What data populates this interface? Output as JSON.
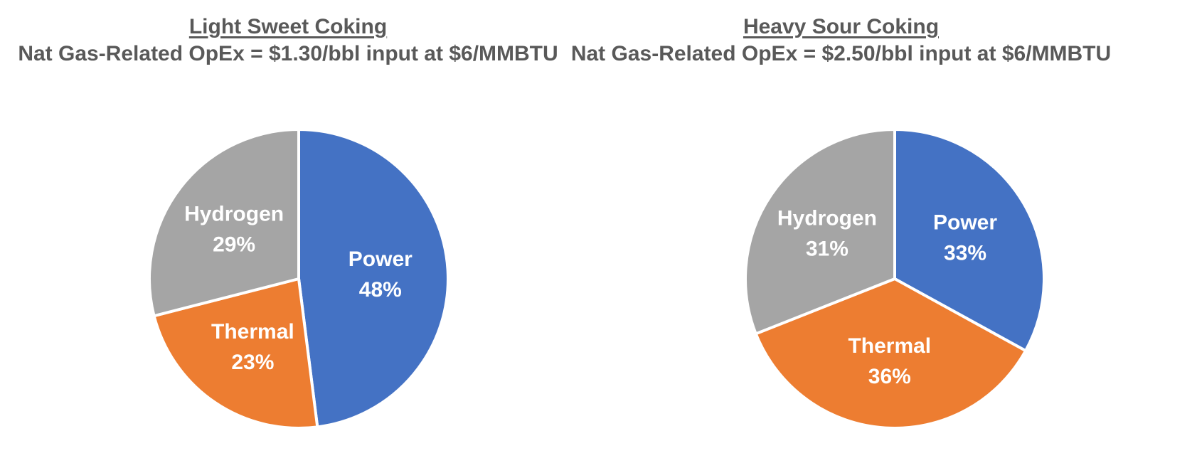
{
  "background": "#FFFFFF",
  "title_text_color": "#595959",
  "chart_data": [
    {
      "type": "pie",
      "title": "Light Sweet Coking",
      "subtitle": "Nat Gas-Related OpEx = $1.30/bbl input at $6/MMBTU",
      "categories": [
        "Power",
        "Thermal",
        "Hydrogen"
      ],
      "values": [
        48,
        23,
        29
      ],
      "value_suffix": "%",
      "colors": [
        "#4472C4",
        "#ED7D31",
        "#A5A5A5"
      ],
      "label_color": "#FFFFFF",
      "start_angle_deg": 0,
      "direction": "clockwise",
      "legend": "none",
      "labels_position": "inside"
    },
    {
      "type": "pie",
      "title": "Heavy Sour Coking",
      "subtitle": "Nat Gas-Related OpEx = $2.50/bbl input at $6/MMBTU",
      "categories": [
        "Power",
        "Thermal",
        "Hydrogen"
      ],
      "values": [
        33,
        36,
        31
      ],
      "value_suffix": "%",
      "colors": [
        "#4472C4",
        "#ED7D31",
        "#A5A5A5"
      ],
      "label_color": "#FFFFFF",
      "start_angle_deg": 0,
      "direction": "clockwise",
      "legend": "none",
      "labels_position": "inside"
    }
  ]
}
